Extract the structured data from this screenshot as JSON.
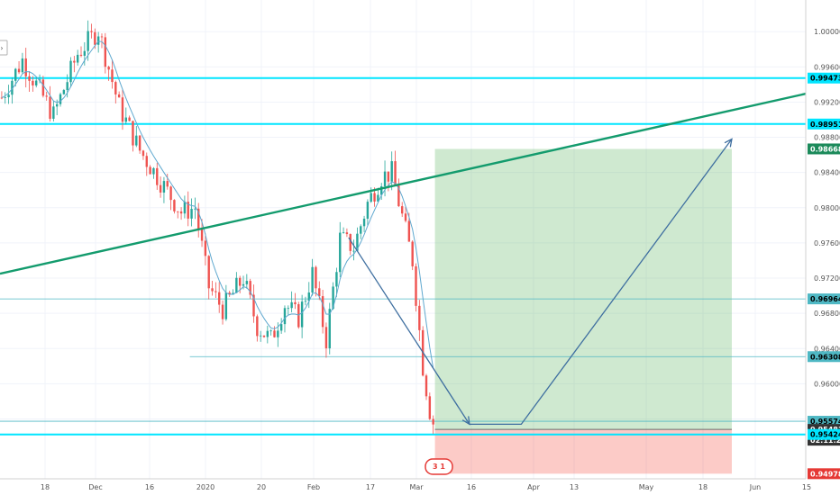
{
  "chart_data": {
    "type": "candlestick",
    "title": "",
    "xlabel": "",
    "ylabel": "",
    "ylim": [
      0.9492,
      1.0036
    ],
    "x_ticks": [
      "18",
      "Dec",
      "16",
      "2020",
      "20",
      "Feb",
      "17",
      "Mar",
      "16",
      "Apr",
      "13",
      "May",
      "18",
      "Jun",
      "15"
    ],
    "y_ticks": [
      1.0,
      0.996,
      0.992,
      0.988,
      0.984,
      0.98,
      0.976,
      0.972,
      0.968,
      0.964,
      0.96,
      0.956
    ],
    "price_labels": [
      {
        "value": 0.99473,
        "text": "0.99473",
        "kind": "cyan"
      },
      {
        "value": 0.98951,
        "text": "0.98951",
        "kind": "cyan"
      },
      {
        "value": 0.98668,
        "text": "0.98668",
        "kind": "green"
      },
      {
        "value": 0.96964,
        "text": "0.96964",
        "kind": "teal"
      },
      {
        "value": 0.96308,
        "text": "0.96308",
        "kind": "teal"
      },
      {
        "value": 0.95574,
        "text": "0.95574",
        "kind": "teal"
      },
      {
        "value": 0.95481,
        "text": "0.95481",
        "kind": "dark"
      },
      {
        "value": 0.95424,
        "text": "0.95424",
        "kind": "cyan"
      },
      {
        "value": 0.94978,
        "text": "0.94978",
        "kind": "red"
      }
    ],
    "countdown": "02:11:28",
    "anchors": [
      {
        "bar": 0,
        "price": 0.9925
      },
      {
        "bar": 6,
        "price": 0.9968
      },
      {
        "bar": 15,
        "price": 0.9905
      },
      {
        "bar": 22,
        "price": 0.9975
      },
      {
        "bar": 28,
        "price": 1.0002
      },
      {
        "bar": 34,
        "price": 0.9915
      },
      {
        "bar": 40,
        "price": 0.9865
      },
      {
        "bar": 46,
        "price": 0.983
      },
      {
        "bar": 52,
        "price": 0.9795
      },
      {
        "bar": 56,
        "price": 0.98
      },
      {
        "bar": 60,
        "price": 0.971
      },
      {
        "bar": 64,
        "price": 0.9685
      },
      {
        "bar": 70,
        "price": 0.972
      },
      {
        "bar": 74,
        "price": 0.9665
      },
      {
        "bar": 78,
        "price": 0.965
      },
      {
        "bar": 82,
        "price": 0.969
      },
      {
        "bar": 86,
        "price": 0.9675
      },
      {
        "bar": 90,
        "price": 0.9725
      },
      {
        "bar": 94,
        "price": 0.965
      },
      {
        "bar": 98,
        "price": 0.9765
      },
      {
        "bar": 102,
        "price": 0.9755
      },
      {
        "bar": 106,
        "price": 0.9805
      },
      {
        "bar": 110,
        "price": 0.9835
      },
      {
        "bar": 113,
        "price": 0.984
      },
      {
        "bar": 116,
        "price": 0.979
      },
      {
        "bar": 119,
        "price": 0.974
      },
      {
        "bar": 122,
        "price": 0.962
      },
      {
        "bar": 124,
        "price": 0.957
      },
      {
        "bar": 125,
        "price": 0.9556
      }
    ],
    "moving_average": "smooth",
    "resistance_trendline": {
      "from": {
        "bar": 0,
        "price": 0.9725
      },
      "to": {
        "bar": 242,
        "price": 0.9937
      }
    },
    "horizontal_levels": [
      {
        "price": 0.99473,
        "style": "cyan-thick",
        "from_bar": 0
      },
      {
        "price": 0.98951,
        "style": "cyan-thick",
        "from_bar": 0
      },
      {
        "price": 0.96964,
        "style": "teal-thin",
        "from_bar": 0
      },
      {
        "price": 0.96308,
        "style": "teal-thin",
        "from_bar": 55
      },
      {
        "price": 0.95574,
        "style": "teal-thin",
        "from_bar": 0
      },
      {
        "price": 0.95424,
        "style": "cyan-thick",
        "from_bar": 0
      }
    ],
    "projection_path": [
      {
        "bar": 101,
        "price": 0.9766
      },
      {
        "bar": 136,
        "price": 0.9554
      },
      {
        "bar": 151,
        "price": 0.9554
      },
      {
        "bar": 212,
        "price": 0.9878
      }
    ],
    "position_box": {
      "from_bar": 126,
      "to_bar": 212,
      "entry": 0.95481,
      "target": 0.98668,
      "stop": 0.94978
    },
    "event_badge": "3 1"
  }
}
